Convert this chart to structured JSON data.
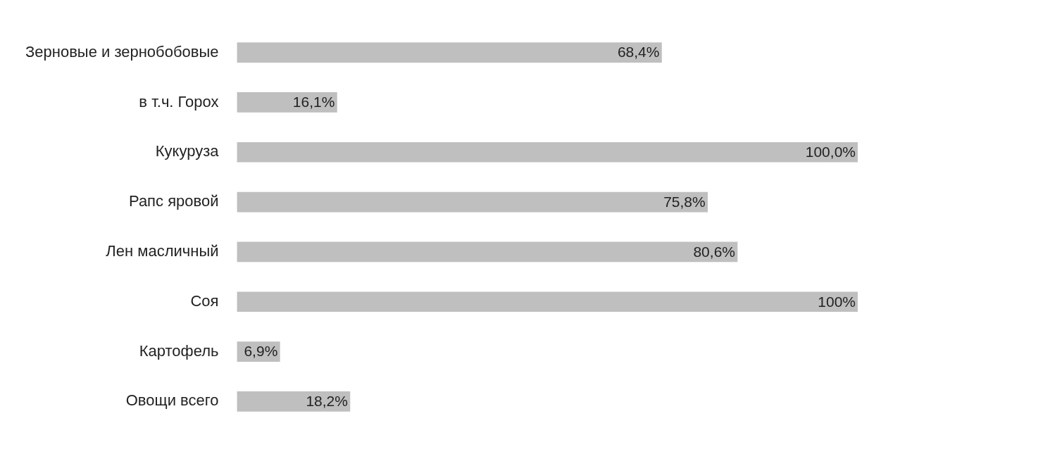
{
  "chart_data": {
    "type": "bar",
    "orientation": "horizontal",
    "categories": [
      "Зерновые и зернобобовые",
      "в т.ч. Горох",
      "Кукуруза",
      "Рапс яровой",
      "Лен масличный",
      "Соя",
      "Картофель",
      "Овощи всего"
    ],
    "values": [
      68.4,
      16.1,
      100.0,
      75.8,
      80.6,
      100,
      6.9,
      18.2
    ],
    "value_labels": [
      "68,4%",
      "16,1%",
      "100,0%",
      "75,8%",
      "80,6%",
      "100%",
      "6,9%",
      "18,2%"
    ],
    "color": "#bfbfbf",
    "grid": false,
    "legend": false,
    "tick_labels": "y"
  }
}
